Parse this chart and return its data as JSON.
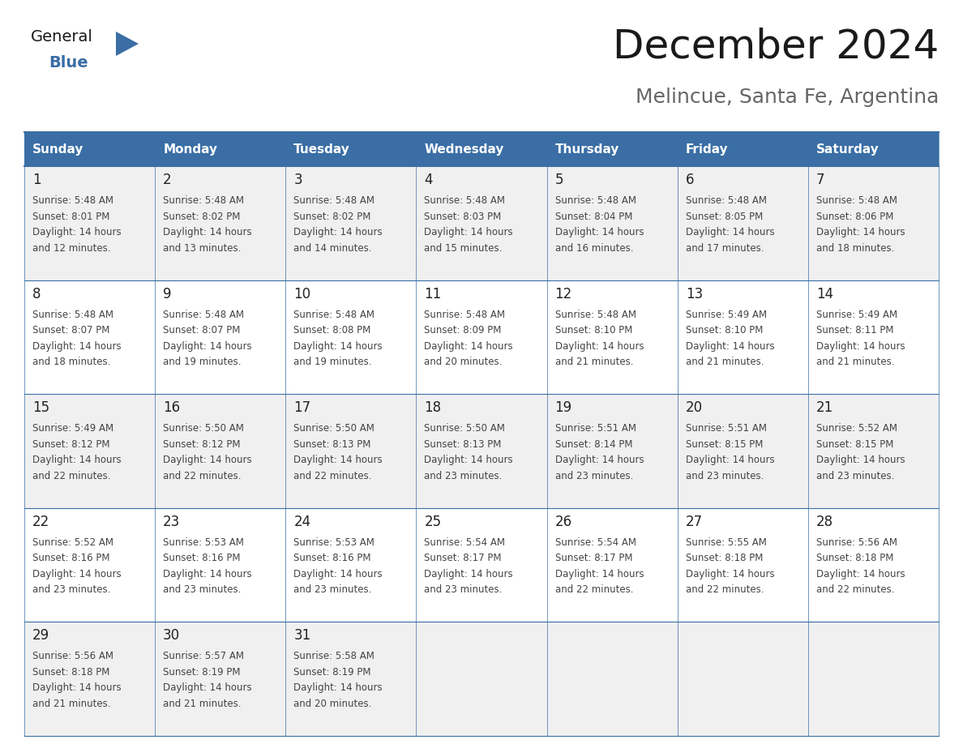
{
  "title": "December 2024",
  "subtitle": "Melincue, Santa Fe, Argentina",
  "header_bg_color": "#3A6EA5",
  "header_text_color": "#FFFFFF",
  "odd_row_bg": "#F0F0F0",
  "even_row_bg": "#FFFFFF",
  "border_color": "#3A6EA5",
  "day_headers": [
    "Sunday",
    "Monday",
    "Tuesday",
    "Wednesday",
    "Thursday",
    "Friday",
    "Saturday"
  ],
  "days": [
    {
      "day": 1,
      "col": 0,
      "row": 0,
      "sunrise": "5:48 AM",
      "sunset": "8:01 PM",
      "daylight_hours": 14,
      "daylight_minutes": 12
    },
    {
      "day": 2,
      "col": 1,
      "row": 0,
      "sunrise": "5:48 AM",
      "sunset": "8:02 PM",
      "daylight_hours": 14,
      "daylight_minutes": 13
    },
    {
      "day": 3,
      "col": 2,
      "row": 0,
      "sunrise": "5:48 AM",
      "sunset": "8:02 PM",
      "daylight_hours": 14,
      "daylight_minutes": 14
    },
    {
      "day": 4,
      "col": 3,
      "row": 0,
      "sunrise": "5:48 AM",
      "sunset": "8:03 PM",
      "daylight_hours": 14,
      "daylight_minutes": 15
    },
    {
      "day": 5,
      "col": 4,
      "row": 0,
      "sunrise": "5:48 AM",
      "sunset": "8:04 PM",
      "daylight_hours": 14,
      "daylight_minutes": 16
    },
    {
      "day": 6,
      "col": 5,
      "row": 0,
      "sunrise": "5:48 AM",
      "sunset": "8:05 PM",
      "daylight_hours": 14,
      "daylight_minutes": 17
    },
    {
      "day": 7,
      "col": 6,
      "row": 0,
      "sunrise": "5:48 AM",
      "sunset": "8:06 PM",
      "daylight_hours": 14,
      "daylight_minutes": 18
    },
    {
      "day": 8,
      "col": 0,
      "row": 1,
      "sunrise": "5:48 AM",
      "sunset": "8:07 PM",
      "daylight_hours": 14,
      "daylight_minutes": 18
    },
    {
      "day": 9,
      "col": 1,
      "row": 1,
      "sunrise": "5:48 AM",
      "sunset": "8:07 PM",
      "daylight_hours": 14,
      "daylight_minutes": 19
    },
    {
      "day": 10,
      "col": 2,
      "row": 1,
      "sunrise": "5:48 AM",
      "sunset": "8:08 PM",
      "daylight_hours": 14,
      "daylight_minutes": 19
    },
    {
      "day": 11,
      "col": 3,
      "row": 1,
      "sunrise": "5:48 AM",
      "sunset": "8:09 PM",
      "daylight_hours": 14,
      "daylight_minutes": 20
    },
    {
      "day": 12,
      "col": 4,
      "row": 1,
      "sunrise": "5:48 AM",
      "sunset": "8:10 PM",
      "daylight_hours": 14,
      "daylight_minutes": 21
    },
    {
      "day": 13,
      "col": 5,
      "row": 1,
      "sunrise": "5:49 AM",
      "sunset": "8:10 PM",
      "daylight_hours": 14,
      "daylight_minutes": 21
    },
    {
      "day": 14,
      "col": 6,
      "row": 1,
      "sunrise": "5:49 AM",
      "sunset": "8:11 PM",
      "daylight_hours": 14,
      "daylight_minutes": 21
    },
    {
      "day": 15,
      "col": 0,
      "row": 2,
      "sunrise": "5:49 AM",
      "sunset": "8:12 PM",
      "daylight_hours": 14,
      "daylight_minutes": 22
    },
    {
      "day": 16,
      "col": 1,
      "row": 2,
      "sunrise": "5:50 AM",
      "sunset": "8:12 PM",
      "daylight_hours": 14,
      "daylight_minutes": 22
    },
    {
      "day": 17,
      "col": 2,
      "row": 2,
      "sunrise": "5:50 AM",
      "sunset": "8:13 PM",
      "daylight_hours": 14,
      "daylight_minutes": 22
    },
    {
      "day": 18,
      "col": 3,
      "row": 2,
      "sunrise": "5:50 AM",
      "sunset": "8:13 PM",
      "daylight_hours": 14,
      "daylight_minutes": 23
    },
    {
      "day": 19,
      "col": 4,
      "row": 2,
      "sunrise": "5:51 AM",
      "sunset": "8:14 PM",
      "daylight_hours": 14,
      "daylight_minutes": 23
    },
    {
      "day": 20,
      "col": 5,
      "row": 2,
      "sunrise": "5:51 AM",
      "sunset": "8:15 PM",
      "daylight_hours": 14,
      "daylight_minutes": 23
    },
    {
      "day": 21,
      "col": 6,
      "row": 2,
      "sunrise": "5:52 AM",
      "sunset": "8:15 PM",
      "daylight_hours": 14,
      "daylight_minutes": 23
    },
    {
      "day": 22,
      "col": 0,
      "row": 3,
      "sunrise": "5:52 AM",
      "sunset": "8:16 PM",
      "daylight_hours": 14,
      "daylight_minutes": 23
    },
    {
      "day": 23,
      "col": 1,
      "row": 3,
      "sunrise": "5:53 AM",
      "sunset": "8:16 PM",
      "daylight_hours": 14,
      "daylight_minutes": 23
    },
    {
      "day": 24,
      "col": 2,
      "row": 3,
      "sunrise": "5:53 AM",
      "sunset": "8:16 PM",
      "daylight_hours": 14,
      "daylight_minutes": 23
    },
    {
      "day": 25,
      "col": 3,
      "row": 3,
      "sunrise": "5:54 AM",
      "sunset": "8:17 PM",
      "daylight_hours": 14,
      "daylight_minutes": 23
    },
    {
      "day": 26,
      "col": 4,
      "row": 3,
      "sunrise": "5:54 AM",
      "sunset": "8:17 PM",
      "daylight_hours": 14,
      "daylight_minutes": 22
    },
    {
      "day": 27,
      "col": 5,
      "row": 3,
      "sunrise": "5:55 AM",
      "sunset": "8:18 PM",
      "daylight_hours": 14,
      "daylight_minutes": 22
    },
    {
      "day": 28,
      "col": 6,
      "row": 3,
      "sunrise": "5:56 AM",
      "sunset": "8:18 PM",
      "daylight_hours": 14,
      "daylight_minutes": 22
    },
    {
      "day": 29,
      "col": 0,
      "row": 4,
      "sunrise": "5:56 AM",
      "sunset": "8:18 PM",
      "daylight_hours": 14,
      "daylight_minutes": 21
    },
    {
      "day": 30,
      "col": 1,
      "row": 4,
      "sunrise": "5:57 AM",
      "sunset": "8:19 PM",
      "daylight_hours": 14,
      "daylight_minutes": 21
    },
    {
      "day": 31,
      "col": 2,
      "row": 4,
      "sunrise": "5:58 AM",
      "sunset": "8:19 PM",
      "daylight_hours": 14,
      "daylight_minutes": 20
    }
  ],
  "logo_text_general": "General",
  "logo_text_blue": "Blue",
  "logo_color_general": "#1a1a1a",
  "logo_color_blue": "#3A6EA5",
  "logo_triangle_color": "#3A6EA5",
  "title_fontsize": 36,
  "subtitle_fontsize": 18,
  "header_fontsize": 11,
  "day_num_fontsize": 12,
  "cell_text_fontsize": 8.5
}
